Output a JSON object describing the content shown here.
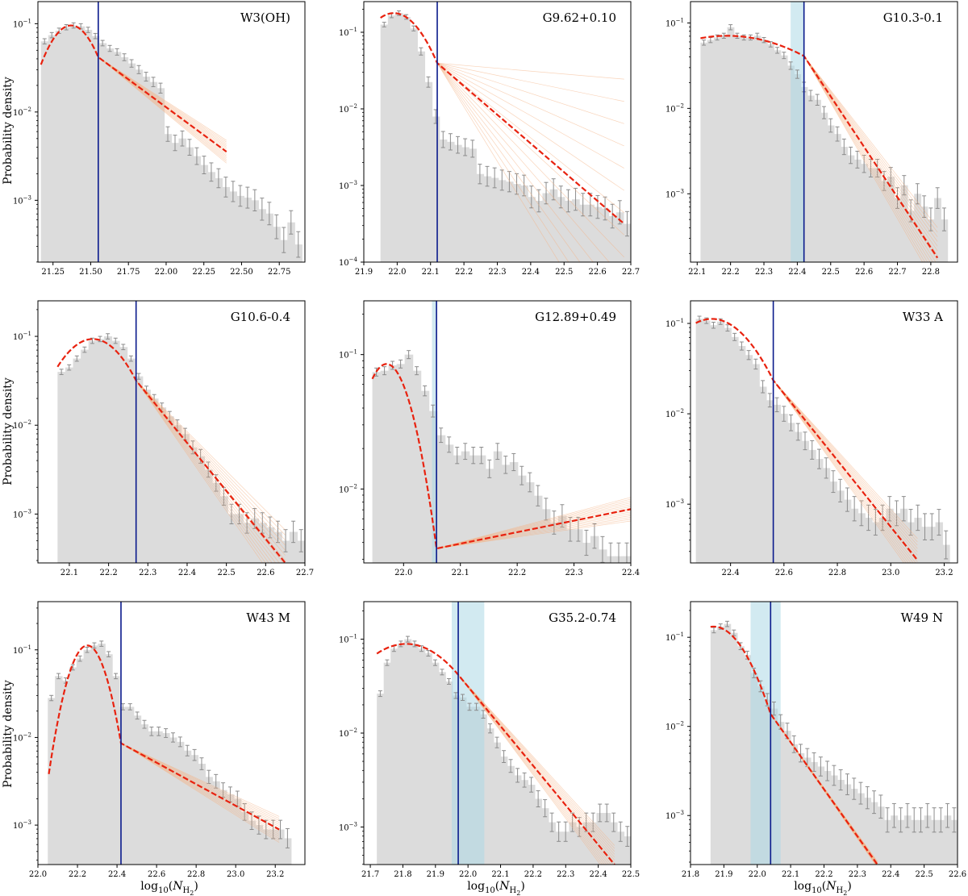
{
  "figure": {
    "ylabel": "Probability density",
    "xlabel_prefix": "log",
    "xlabel_base": "10",
    "xlabel_var": "N",
    "xlabel_sub": "H",
    "xlabel_subsub": "2"
  },
  "colors": {
    "hist": "#dcdcdc",
    "errorbar": "#8c8c8c",
    "fit": "#e8220f",
    "fit_dash": "#ff3b1f",
    "mc_lines": "#f4b183",
    "vline": "#0a1a8c",
    "band": "#add8e6"
  },
  "chart_data": [
    {
      "type": "bar",
      "title": "W3(OH)",
      "xlim": [
        21.15,
        22.92
      ],
      "ylim_log": [
        -3.7,
        -0.75
      ],
      "xticks": [
        21.25,
        21.5,
        21.75,
        22.0,
        22.25,
        22.5,
        22.75
      ],
      "xtick_labels": [
        "21.25",
        "21.50",
        "21.75",
        "22.00",
        "22.25",
        "22.50",
        "22.75"
      ],
      "yticks_exp": [
        -1,
        -2,
        -3
      ],
      "hist_x0": 21.17,
      "hist_x1": 22.9,
      "hist_log": [
        -1.2,
        -1.13,
        -1.08,
        -1.04,
        -1.02,
        -1.03,
        -1.07,
        -1.14,
        -1.22,
        -1.28,
        -1.32,
        -1.38,
        -1.45,
        -1.52,
        -1.6,
        -1.66,
        -1.73,
        -2.25,
        -2.35,
        -2.3,
        -2.4,
        -2.5,
        -2.6,
        -2.68,
        -2.75,
        -2.85,
        -2.9,
        -2.95,
        -2.97,
        -3.0,
        -3.1,
        -3.15,
        -3.3,
        -3.45,
        -3.25,
        -3.5
      ],
      "split": 21.55,
      "lognormal": {
        "peak": -1.02,
        "mu": 21.37,
        "sigma": 0.14,
        "x0": 21.17
      },
      "powerlaw_end": 22.4,
      "powerlaw_end_log": -2.45,
      "mc_spread": 0.12,
      "band": null
    },
    {
      "type": "bar",
      "title": "G9.62+0.10",
      "xlim": [
        21.9,
        22.7
      ],
      "ylim_log": [
        -4.0,
        -0.6
      ],
      "xticks": [
        21.9,
        22.0,
        22.1,
        22.2,
        22.3,
        22.4,
        22.5,
        22.6,
        22.7
      ],
      "xtick_labels": [
        "21.9",
        "22.0",
        "22.1",
        "22.2",
        "22.3",
        "22.4",
        "22.5",
        "22.6",
        "22.7"
      ],
      "yticks_exp": [
        -1,
        -2,
        -3,
        -4
      ],
      "hist_x0": 21.95,
      "hist_x1": 22.7,
      "hist_log": [
        -0.9,
        -0.78,
        -0.75,
        -0.8,
        -0.95,
        -1.25,
        -1.65,
        -2.1,
        -2.4,
        -2.43,
        -2.47,
        -2.5,
        -2.52,
        -2.85,
        -2.88,
        -2.9,
        -2.93,
        -2.95,
        -2.98,
        -3.0,
        -3.15,
        -3.2,
        -3.1,
        -3.05,
        -3.15,
        -3.2,
        -3.18,
        -3.25,
        -3.25,
        -3.28,
        -3.3,
        -3.4,
        -3.35,
        -3.5
      ],
      "split": 22.12,
      "lognormal": {
        "peak": -0.75,
        "mu": 21.99,
        "sigma": 0.075,
        "x0": 21.95
      },
      "powerlaw_end": 22.68,
      "powerlaw_end_log": -3.5,
      "mc_spread": 0.9,
      "band": null
    },
    {
      "type": "bar",
      "title": "G10.3-0.1",
      "xlim": [
        22.08,
        22.88
      ],
      "ylim_log": [
        -3.8,
        -0.75
      ],
      "xticks": [
        22.1,
        22.2,
        22.3,
        22.4,
        22.5,
        22.6,
        22.7,
        22.8
      ],
      "xtick_labels": [
        "22.1",
        "22.2",
        "22.3",
        "22.4",
        "22.5",
        "22.6",
        "22.7",
        "22.8"
      ],
      "yticks_exp": [
        -1,
        -2,
        -3
      ],
      "hist_x0": 22.11,
      "hist_x1": 22.85,
      "hist_log": [
        -1.23,
        -1.2,
        -1.17,
        -1.15,
        -1.05,
        -1.15,
        -1.17,
        -1.17,
        -1.15,
        -1.2,
        -1.25,
        -1.32,
        -1.38,
        -1.5,
        -1.6,
        -1.75,
        -1.85,
        -1.9,
        -2.05,
        -2.2,
        -2.3,
        -2.45,
        -2.55,
        -2.6,
        -2.65,
        -2.7,
        -2.7,
        -2.85,
        -2.8,
        -3.05,
        -2.9,
        -3.2,
        -3.0,
        -3.15,
        -3.3,
        -3.05,
        -3.3
      ],
      "split": 22.42,
      "lognormal": {
        "peak": -1.15,
        "mu": 22.19,
        "sigma": 0.22,
        "x0": 22.11
      },
      "powerlaw_end": 22.82,
      "powerlaw_end_log": -3.75,
      "mc_spread": 0.15,
      "band": [
        22.38,
        22.42
      ]
    },
    {
      "type": "bar",
      "title": "G10.6-0.4",
      "xlim": [
        22.02,
        22.7
      ],
      "ylim_log": [
        -3.55,
        -0.6
      ],
      "xticks": [
        22.1,
        22.2,
        22.3,
        22.4,
        22.5,
        22.6,
        22.7
      ],
      "xtick_labels": [
        "22.1",
        "22.2",
        "22.3",
        "22.4",
        "22.5",
        "22.6",
        "22.7"
      ],
      "yticks_exp": [
        -1,
        -2,
        -3
      ],
      "hist_x0": 22.07,
      "hist_x1": 22.7,
      "hist_log": [
        -1.4,
        -1.35,
        -1.25,
        -1.15,
        -1.05,
        -1.03,
        -1.0,
        -1.05,
        -1.12,
        -1.25,
        -1.45,
        -1.6,
        -1.7,
        -1.8,
        -1.9,
        -2.0,
        -2.1,
        -2.25,
        -2.35,
        -2.5,
        -2.65,
        -2.8,
        -3.0,
        -3.0,
        -3.1,
        -3.05,
        -3.1,
        -3.15,
        -3.2,
        -3.3,
        -3.2,
        -3.3
      ],
      "split": 22.27,
      "lognormal": {
        "peak": -1.03,
        "mu": 22.16,
        "sigma": 0.075,
        "x0": 22.07
      },
      "powerlaw_end": 22.65,
      "powerlaw_end_log": -3.55,
      "mc_spread": 0.18,
      "band": null
    },
    {
      "type": "bar",
      "title": "G12.89+0.49",
      "xlim": [
        21.93,
        22.4
      ],
      "ylim_log": [
        -2.55,
        -0.6
      ],
      "xticks": [
        22.0,
        22.1,
        22.2,
        22.3,
        22.4
      ],
      "xtick_labels": [
        "22.0",
        "22.1",
        "22.2",
        "22.3",
        "22.4"
      ],
      "yticks_exp": [
        -1,
        -2
      ],
      "hist_x0": 21.945,
      "hist_x1": 22.4,
      "hist_log": [
        -1.13,
        -1.12,
        -1.08,
        -1.07,
        -1.0,
        -1.12,
        -1.27,
        -1.42,
        -1.6,
        -1.67,
        -1.75,
        -1.72,
        -1.75,
        -1.75,
        -1.85,
        -1.72,
        -1.82,
        -1.8,
        -1.9,
        -1.95,
        -2.05,
        -2.15,
        -2.25,
        -2.2,
        -2.3,
        -2.3,
        -2.4,
        -2.35,
        -2.45,
        -2.5,
        -2.5,
        -2.5
      ],
      "split": 22.058,
      "lognormal": {
        "peak": -1.07,
        "mu": 21.97,
        "sigma": 0.035,
        "x0": 21.945
      },
      "powerlaw_end": 22.4,
      "powerlaw_end_log": -2.15,
      "mc_spread": 0.3,
      "band": [
        22.05,
        22.058
      ]
    },
    {
      "type": "bar",
      "title": "W33 A",
      "xlim": [
        22.25,
        23.25
      ],
      "ylim_log": [
        -3.65,
        -0.75
      ],
      "xticks": [
        22.4,
        22.6,
        22.8,
        23.0,
        23.2
      ],
      "xtick_labels": [
        "22.4",
        "22.6",
        "22.8",
        "23.0",
        "23.2"
      ],
      "yticks_exp": [
        -1,
        -2,
        -3
      ],
      "hist_x0": 22.27,
      "hist_x1": 23.22,
      "hist_log": [
        -0.95,
        -0.97,
        -1.02,
        -0.98,
        -1.05,
        -1.15,
        -1.25,
        -1.35,
        -1.45,
        -1.7,
        -1.85,
        -1.9,
        -2.0,
        -2.1,
        -2.2,
        -2.3,
        -2.4,
        -2.5,
        -2.6,
        -2.75,
        -2.85,
        -2.95,
        -3.05,
        -3.1,
        -3.15,
        -3.2,
        -3.15,
        -3.05,
        -3.1,
        -3.05,
        -3.2,
        -3.15,
        -3.25,
        -3.25,
        -3.2,
        -3.45
      ],
      "split": 22.56,
      "lognormal": {
        "peak": -0.95,
        "mu": 22.33,
        "sigma": 0.13,
        "x0": 22.27
      },
      "powerlaw_end": 23.1,
      "powerlaw_end_log": -3.62,
      "mc_spread": 0.12,
      "band": null
    },
    {
      "type": "bar",
      "title": "W43 M",
      "xlim": [
        22.0,
        23.35
      ],
      "ylim_log": [
        -3.45,
        -0.45
      ],
      "xticks": [
        22.0,
        22.2,
        22.4,
        22.6,
        22.8,
        23.0,
        23.2
      ],
      "xtick_labels": [
        "22.0",
        "22.2",
        "22.4",
        "22.6",
        "22.8",
        "23.0",
        "23.2"
      ],
      "yticks_exp": [
        -1,
        -2,
        -3
      ],
      "hist_x0": 22.05,
      "hist_x1": 23.28,
      "hist_log": [
        -1.55,
        -1.3,
        -1.35,
        -1.2,
        -1.1,
        -1.0,
        -0.95,
        -0.93,
        -1.05,
        -1.3,
        -1.65,
        -1.65,
        -1.75,
        -1.85,
        -1.93,
        -1.93,
        -1.95,
        -2.0,
        -2.05,
        -2.15,
        -2.2,
        -2.3,
        -2.45,
        -2.5,
        -2.6,
        -2.65,
        -2.7,
        -2.85,
        -2.95,
        -3.0,
        -3.05,
        -3.05,
        -3.05,
        -3.15
      ],
      "split": 22.42,
      "lognormal": {
        "peak": -0.95,
        "mu": 22.25,
        "sigma": 0.075,
        "x0": 22.055
      },
      "powerlaw_end": 23.22,
      "powerlaw_end_log": -3.05,
      "mc_spread": 0.15,
      "band": null
    },
    {
      "type": "bar",
      "title": "G35.2-0.74",
      "xlim": [
        21.68,
        22.5
      ],
      "ylim_log": [
        -3.4,
        -0.6
      ],
      "xticks": [
        21.7,
        21.8,
        21.9,
        22.0,
        22.1,
        22.2,
        22.3,
        22.4,
        22.5
      ],
      "xtick_labels": [
        "21.7",
        "21.8",
        "21.9",
        "22.0",
        "22.1",
        "22.2",
        "22.3",
        "22.4",
        "22.5"
      ],
      "yticks_exp": [
        -1,
        -2,
        -3
      ],
      "hist_x0": 21.72,
      "hist_x1": 22.5,
      "hist_log": [
        -1.58,
        -1.25,
        -1.1,
        -1.05,
        -1.0,
        -1.05,
        -1.1,
        -1.15,
        -1.25,
        -1.35,
        -1.45,
        -1.6,
        -1.62,
        -1.72,
        -1.72,
        -1.8,
        -1.95,
        -2.1,
        -2.25,
        -2.35,
        -2.45,
        -2.5,
        -2.55,
        -2.7,
        -2.8,
        -2.95,
        -3.05,
        -3.05,
        -2.95,
        -3.0,
        -2.95,
        -2.95,
        -2.85,
        -2.85,
        -2.95,
        -3.05,
        -3.1
      ],
      "split": 21.97,
      "lognormal": {
        "peak": -1.05,
        "mu": 21.81,
        "sigma": 0.13,
        "x0": 21.72
      },
      "powerlaw_end": 22.45,
      "powerlaw_end_log": -3.4,
      "mc_spread": 0.1,
      "band": [
        21.95,
        22.05
      ]
    },
    {
      "type": "bar",
      "title": "W49 N",
      "xlim": [
        21.8,
        22.6
      ],
      "ylim_log": [
        -3.55,
        -0.6
      ],
      "xticks": [
        21.8,
        21.9,
        22.0,
        22.1,
        22.2,
        22.3,
        22.4,
        22.5,
        22.6
      ],
      "xtick_labels": [
        "21.8",
        "21.9",
        "22.0",
        "22.1",
        "22.2",
        "22.3",
        "22.4",
        "22.5",
        "22.6"
      ],
      "yticks_exp": [
        -1,
        -2,
        -3
      ],
      "hist_x0": 21.86,
      "hist_x1": 22.6,
      "hist_log": [
        -0.92,
        -0.88,
        -0.85,
        -0.95,
        -1.1,
        -1.2,
        -1.4,
        -1.55,
        -1.7,
        -1.8,
        -1.95,
        -2.05,
        -2.2,
        -2.3,
        -2.35,
        -2.4,
        -2.45,
        -2.5,
        -2.55,
        -2.6,
        -2.65,
        -2.7,
        -2.75,
        -2.8,
        -2.85,
        -2.9,
        -3.05,
        -3.0,
        -3.05,
        -3.0,
        -3.05,
        -3.05,
        -3.0,
        -3.05,
        -3.05,
        -3.0,
        -3.05
      ],
      "split": 22.04,
      "lognormal": {
        "peak": -0.88,
        "mu": 21.87,
        "sigma": 0.08,
        "x0": 21.86
      },
      "powerlaw_end": 22.36,
      "powerlaw_end_log": -3.55,
      "mc_spread": 0.02,
      "band": [
        21.98,
        22.07
      ]
    }
  ]
}
